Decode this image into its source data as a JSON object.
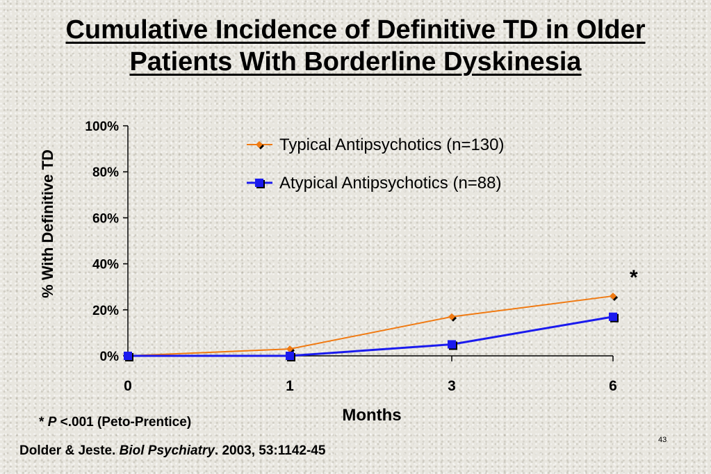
{
  "slide": {
    "title_line1": "Cumulative Incidence of Definitive TD in Older",
    "title_line2": "Patients With Borderline Dyskinesia",
    "footnote_star": "*",
    "footnote_p": "P",
    "footnote_rest": "<.001 (Peto-Prentice)",
    "citation_authors": "Dolder & Jeste.",
    "citation_journal": "Biol Psychiatry",
    "citation_details": ". 2003, 53:1142-45",
    "page_number": "43",
    "significance_marker": "*"
  },
  "colors": {
    "typical": "#f07a12",
    "atypical": "#1a1aee",
    "axis": "#000000"
  },
  "chart_data": {
    "type": "line",
    "title": "Cumulative Incidence of Definitive TD in Older Patients With Borderline Dyskinesia",
    "xlabel": "Months",
    "ylabel": "% With Definitive TD",
    "categories": [
      "0",
      "1",
      "3",
      "6"
    ],
    "ylim": [
      0,
      100
    ],
    "yticks": [
      "0%",
      "20%",
      "40%",
      "60%",
      "80%",
      "100%"
    ],
    "ytick_values": [
      0,
      20,
      40,
      60,
      80,
      100
    ],
    "grid": false,
    "legend_position": "top-right",
    "series": [
      {
        "name": "Typical Antipsychotics (n=130)",
        "marker": "diamond",
        "values": [
          0,
          3,
          17,
          26
        ]
      },
      {
        "name": "Atypical Antipsychotics (n=88)",
        "marker": "square",
        "values": [
          0,
          0,
          5,
          17
        ]
      }
    ]
  }
}
